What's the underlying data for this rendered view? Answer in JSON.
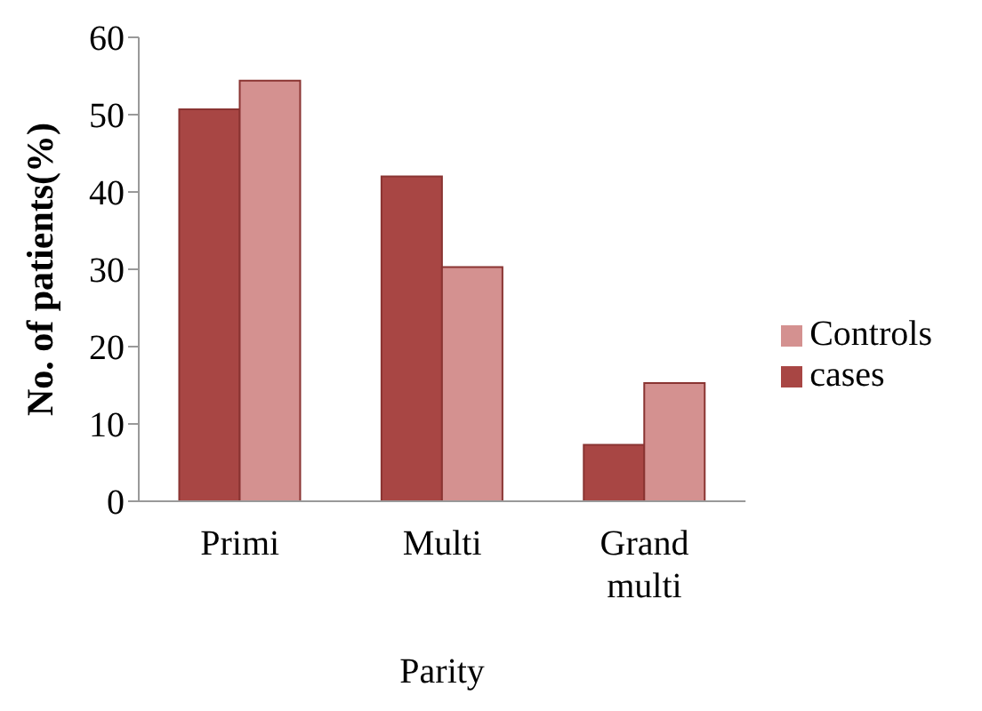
{
  "chart_data": {
    "type": "bar",
    "xlabel": "Parity",
    "ylabel": "No. of patients(%)",
    "categories": [
      "Primi",
      "Multi",
      "Grand multi"
    ],
    "series": [
      {
        "name": "cases",
        "color": "#a84644",
        "values": [
          50.7,
          42.0,
          7.3
        ]
      },
      {
        "name": "Controls",
        "color": "#d49190",
        "values": [
          54.4,
          30.3,
          15.3
        ]
      }
    ],
    "ylim": [
      0,
      60
    ],
    "yticks": [
      0,
      10,
      20,
      30,
      40,
      50,
      60
    ],
    "grid": false,
    "legend": "right"
  }
}
